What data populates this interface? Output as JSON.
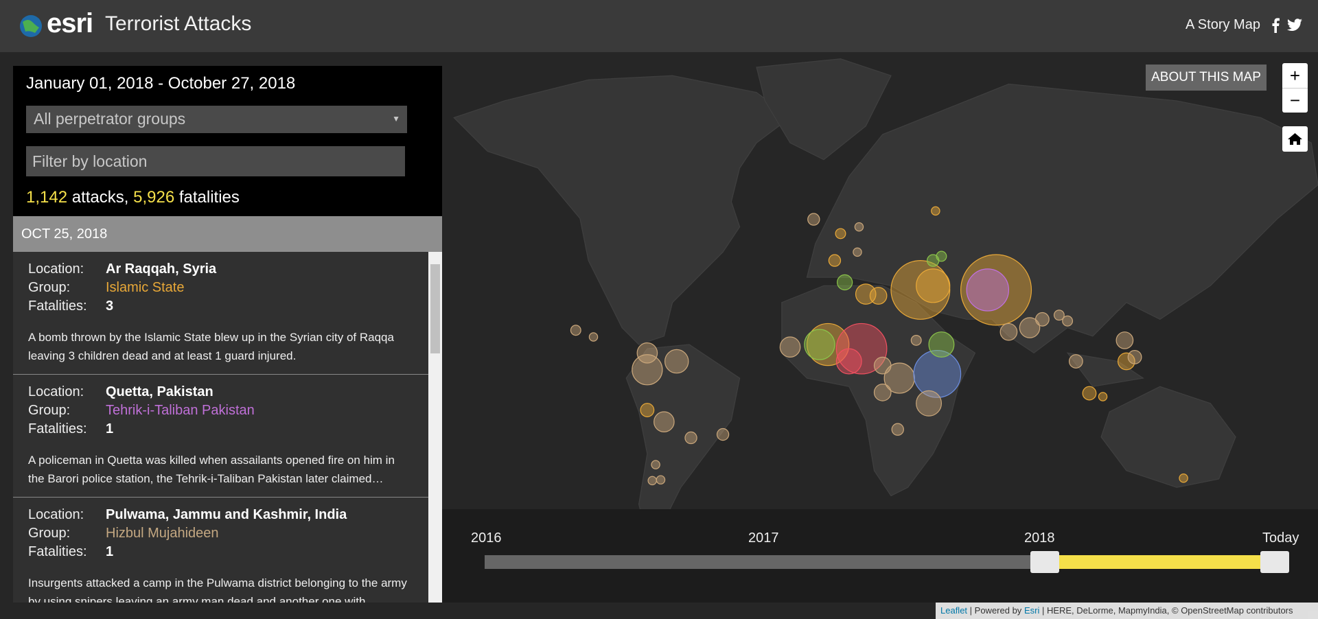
{
  "header": {
    "logo": "esri",
    "title": "Terrorist Attacks",
    "subtitle": "A Story Map"
  },
  "map": {
    "about_button": "ABOUT THIS MAP",
    "zoom_in": "+",
    "zoom_out": "−"
  },
  "panel": {
    "date_range": "January 01, 2018 - October 27, 2018",
    "group_filter": "All perpetrator groups",
    "location_placeholder": "Filter by location",
    "stats": {
      "attacks": "1,142",
      "attacks_label": "attacks,",
      "fatalities": "5,926",
      "fatalities_label": "fatalities"
    },
    "date_header": "OCT 25, 2018",
    "field_labels": {
      "location": "Location:",
      "group": "Group:",
      "fatalities": "Fatalities:"
    },
    "entries": [
      {
        "location": "Ar Raqqah, Syria",
        "group": "Islamic State",
        "group_color": "#e8a838",
        "fatalities": 3,
        "description": "A bomb thrown by the Islamic State blew up in the Syrian city of Raqqa leaving 3 children dead and at least 1 guard injured."
      },
      {
        "location": "Quetta, Pakistan",
        "group": "Tehrik-i-Taliban Pakistan",
        "group_color": "#c070d8",
        "fatalities": 1,
        "description": "A policeman in Quetta was killed when assailants opened fire on him in the Barori police station, the Tehrik-i-Taliban Pakistan later claimed…"
      },
      {
        "location": "Pulwama, Jammu and Kashmir, India",
        "group": "Hizbul Mujahideen",
        "group_color": "#c4a882",
        "fatalities": 1,
        "description": "Insurgents attacked a camp in the Pulwama district belonging to the army by using snipers leaving an army man dead and another one with"
      }
    ]
  },
  "timeline": {
    "labels": [
      "2016",
      "2017",
      "2018",
      "Today"
    ]
  },
  "attribution": {
    "leaflet": "Leaflet",
    "powered_by": "| Powered by",
    "esri": "Esri",
    "sources": "| HERE, DeLorme, MapmyIndia, © OpenStreetMap contributors"
  }
}
